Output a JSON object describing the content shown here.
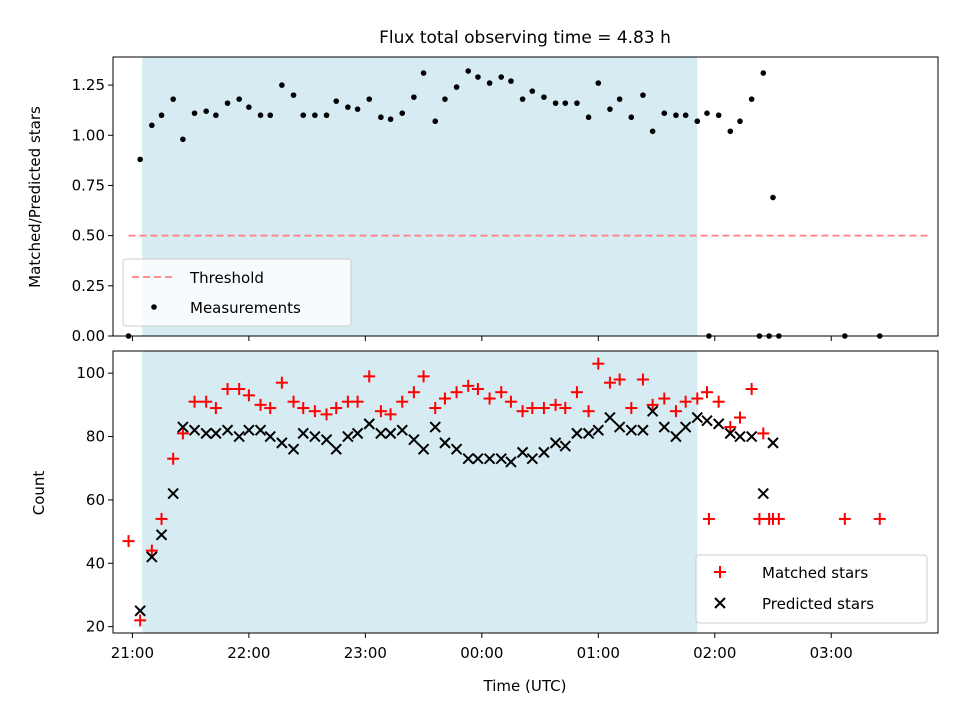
{
  "title": "Flux total observing time = 4.83 h",
  "colors": {
    "shade": "#add8e6",
    "threshold": "#ff7f7f",
    "matched": "#ff0000",
    "predicted": "#000000",
    "measurements": "#000000"
  },
  "chart_data": [
    {
      "type": "scatter",
      "ylabel": "Matched/Predicted stars",
      "ylim": [
        0,
        1.39
      ],
      "yticks": [
        0,
        0.25,
        0.5,
        0.75,
        1.0,
        1.25
      ],
      "ytick_labels": [
        "0.00",
        "0.25",
        "0.50",
        "0.75",
        "1.00",
        "1.25"
      ],
      "xlim": [
        "20:50",
        "03:55"
      ],
      "shaded_span": [
        "21:05",
        "01:51"
      ],
      "legend": {
        "position": "lower-left",
        "entries": [
          "Threshold",
          "Measurements"
        ]
      },
      "threshold": {
        "name": "Threshold",
        "value": 0.5,
        "x_range": [
          "20:58",
          "03:51"
        ],
        "style": "dashed"
      },
      "series": [
        {
          "name": "Measurements",
          "marker": "dot",
          "points": [
            [
              "20:58",
              0.0
            ],
            [
              "21:04",
              0.88
            ],
            [
              "21:10",
              1.05
            ],
            [
              "21:15",
              1.1
            ],
            [
              "21:21",
              1.18
            ],
            [
              "21:26",
              0.98
            ],
            [
              "21:32",
              1.11
            ],
            [
              "21:38",
              1.12
            ],
            [
              "21:43",
              1.1
            ],
            [
              "21:49",
              1.16
            ],
            [
              "21:55",
              1.18
            ],
            [
              "22:00",
              1.14
            ],
            [
              "22:06",
              1.1
            ],
            [
              "22:11",
              1.1
            ],
            [
              "22:17",
              1.25
            ],
            [
              "22:23",
              1.2
            ],
            [
              "22:28",
              1.1
            ],
            [
              "22:34",
              1.1
            ],
            [
              "22:40",
              1.1
            ],
            [
              "22:45",
              1.17
            ],
            [
              "22:51",
              1.14
            ],
            [
              "22:56",
              1.13
            ],
            [
              "23:02",
              1.18
            ],
            [
              "23:08",
              1.09
            ],
            [
              "23:13",
              1.08
            ],
            [
              "23:19",
              1.11
            ],
            [
              "23:25",
              1.19
            ],
            [
              "23:30",
              1.31
            ],
            [
              "23:36",
              1.07
            ],
            [
              "23:41",
              1.18
            ],
            [
              "23:47",
              1.24
            ],
            [
              "23:53",
              1.32
            ],
            [
              "23:58",
              1.29
            ],
            [
              "00:04",
              1.26
            ],
            [
              "00:10",
              1.29
            ],
            [
              "00:15",
              1.27
            ],
            [
              "00:21",
              1.18
            ],
            [
              "00:26",
              1.22
            ],
            [
              "00:32",
              1.19
            ],
            [
              "00:38",
              1.16
            ],
            [
              "00:43",
              1.16
            ],
            [
              "00:49",
              1.16
            ],
            [
              "00:55",
              1.09
            ],
            [
              "01:00",
              1.26
            ],
            [
              "01:06",
              1.13
            ],
            [
              "01:11",
              1.18
            ],
            [
              "01:17",
              1.09
            ],
            [
              "01:23",
              1.2
            ],
            [
              "01:28",
              1.02
            ],
            [
              "01:34",
              1.11
            ],
            [
              "01:40",
              1.1
            ],
            [
              "01:45",
              1.1
            ],
            [
              "01:51",
              1.07
            ],
            [
              "01:56",
              1.11
            ],
            [
              "02:02",
              1.1
            ],
            [
              "02:08",
              1.02
            ],
            [
              "02:13",
              1.07
            ],
            [
              "02:19",
              1.18
            ],
            [
              "02:25",
              1.31
            ],
            [
              "02:30",
              0.69
            ],
            [
              "01:57",
              0.0
            ],
            [
              "02:23",
              0.0
            ],
            [
              "02:28",
              0.0
            ],
            [
              "02:33",
              0.0
            ],
            [
              "03:07",
              0.0
            ],
            [
              "03:25",
              0.0
            ]
          ]
        }
      ]
    },
    {
      "type": "scatter",
      "xlabel": "Time (UTC)",
      "ylabel": "Count",
      "ylim": [
        18,
        107
      ],
      "yticks": [
        20,
        40,
        60,
        80,
        100
      ],
      "ytick_labels": [
        "20",
        "40",
        "60",
        "80",
        "100"
      ],
      "xlim": [
        "20:50",
        "03:55"
      ],
      "xticks": [
        "21:00",
        "22:00",
        "23:00",
        "00:00",
        "01:00",
        "02:00",
        "03:00"
      ],
      "shaded_span": [
        "21:05",
        "01:51"
      ],
      "legend": {
        "position": "lower-right",
        "entries": [
          "Matched stars",
          "Predicted stars"
        ]
      },
      "series": [
        {
          "name": "Matched stars",
          "marker": "plus",
          "points": [
            [
              "20:58",
              47
            ],
            [
              "21:04",
              22
            ],
            [
              "21:10",
              44
            ],
            [
              "21:15",
              54
            ],
            [
              "21:21",
              73
            ],
            [
              "21:26",
              81
            ],
            [
              "21:32",
              91
            ],
            [
              "21:38",
              91
            ],
            [
              "21:43",
              89
            ],
            [
              "21:49",
              95
            ],
            [
              "21:55",
              95
            ],
            [
              "22:00",
              93
            ],
            [
              "22:06",
              90
            ],
            [
              "22:11",
              89
            ],
            [
              "22:17",
              97
            ],
            [
              "22:23",
              91
            ],
            [
              "22:28",
              89
            ],
            [
              "22:34",
              88
            ],
            [
              "22:40",
              87
            ],
            [
              "22:45",
              89
            ],
            [
              "22:51",
              91
            ],
            [
              "22:56",
              91
            ],
            [
              "23:02",
              99
            ],
            [
              "23:08",
              88
            ],
            [
              "23:13",
              87
            ],
            [
              "23:19",
              91
            ],
            [
              "23:25",
              94
            ],
            [
              "23:30",
              99
            ],
            [
              "23:36",
              89
            ],
            [
              "23:41",
              92
            ],
            [
              "23:47",
              94
            ],
            [
              "23:53",
              96
            ],
            [
              "23:58",
              95
            ],
            [
              "00:04",
              92
            ],
            [
              "00:10",
              94
            ],
            [
              "00:15",
              91
            ],
            [
              "00:21",
              88
            ],
            [
              "00:26",
              89
            ],
            [
              "00:32",
              89
            ],
            [
              "00:38",
              90
            ],
            [
              "00:43",
              89
            ],
            [
              "00:49",
              94
            ],
            [
              "00:55",
              88
            ],
            [
              "01:00",
              103
            ],
            [
              "01:06",
              97
            ],
            [
              "01:11",
              98
            ],
            [
              "01:17",
              89
            ],
            [
              "01:23",
              98
            ],
            [
              "01:28",
              90
            ],
            [
              "01:34",
              92
            ],
            [
              "01:40",
              88
            ],
            [
              "01:45",
              91
            ],
            [
              "01:51",
              92
            ],
            [
              "01:56",
              94
            ],
            [
              "02:02",
              91
            ],
            [
              "02:08",
              83
            ],
            [
              "02:13",
              86
            ],
            [
              "02:19",
              95
            ],
            [
              "02:25",
              81
            ],
            [
              "02:30",
              54
            ],
            [
              "01:57",
              54
            ],
            [
              "02:23",
              54
            ],
            [
              "02:28",
              54
            ],
            [
              "02:33",
              54
            ],
            [
              "03:07",
              54
            ],
            [
              "03:25",
              54
            ]
          ]
        },
        {
          "name": "Predicted stars",
          "marker": "x",
          "points": [
            [
              "21:04",
              25
            ],
            [
              "21:10",
              42
            ],
            [
              "21:15",
              49
            ],
            [
              "21:21",
              62
            ],
            [
              "21:26",
              83
            ],
            [
              "21:32",
              82
            ],
            [
              "21:38",
              81
            ],
            [
              "21:43",
              81
            ],
            [
              "21:49",
              82
            ],
            [
              "21:55",
              80
            ],
            [
              "22:00",
              82
            ],
            [
              "22:06",
              82
            ],
            [
              "22:11",
              80
            ],
            [
              "22:17",
              78
            ],
            [
              "22:23",
              76
            ],
            [
              "22:28",
              81
            ],
            [
              "22:34",
              80
            ],
            [
              "22:40",
              79
            ],
            [
              "22:45",
              76
            ],
            [
              "22:51",
              80
            ],
            [
              "22:56",
              81
            ],
            [
              "23:02",
              84
            ],
            [
              "23:08",
              81
            ],
            [
              "23:13",
              81
            ],
            [
              "23:19",
              82
            ],
            [
              "23:25",
              79
            ],
            [
              "23:30",
              76
            ],
            [
              "23:36",
              83
            ],
            [
              "23:41",
              78
            ],
            [
              "23:47",
              76
            ],
            [
              "23:53",
              73
            ],
            [
              "23:58",
              73
            ],
            [
              "00:04",
              73
            ],
            [
              "00:10",
              73
            ],
            [
              "00:15",
              72
            ],
            [
              "00:21",
              75
            ],
            [
              "00:26",
              73
            ],
            [
              "00:32",
              75
            ],
            [
              "00:38",
              78
            ],
            [
              "00:43",
              77
            ],
            [
              "00:49",
              81
            ],
            [
              "00:55",
              81
            ],
            [
              "01:00",
              82
            ],
            [
              "01:06",
              86
            ],
            [
              "01:11",
              83
            ],
            [
              "01:17",
              82
            ],
            [
              "01:23",
              82
            ],
            [
              "01:28",
              88
            ],
            [
              "01:34",
              83
            ],
            [
              "01:40",
              80
            ],
            [
              "01:45",
              83
            ],
            [
              "01:51",
              86
            ],
            [
              "01:56",
              85
            ],
            [
              "02:02",
              84
            ],
            [
              "02:08",
              81
            ],
            [
              "02:13",
              80
            ],
            [
              "02:19",
              80
            ],
            [
              "02:25",
              62
            ],
            [
              "02:30",
              78
            ]
          ]
        }
      ]
    }
  ]
}
